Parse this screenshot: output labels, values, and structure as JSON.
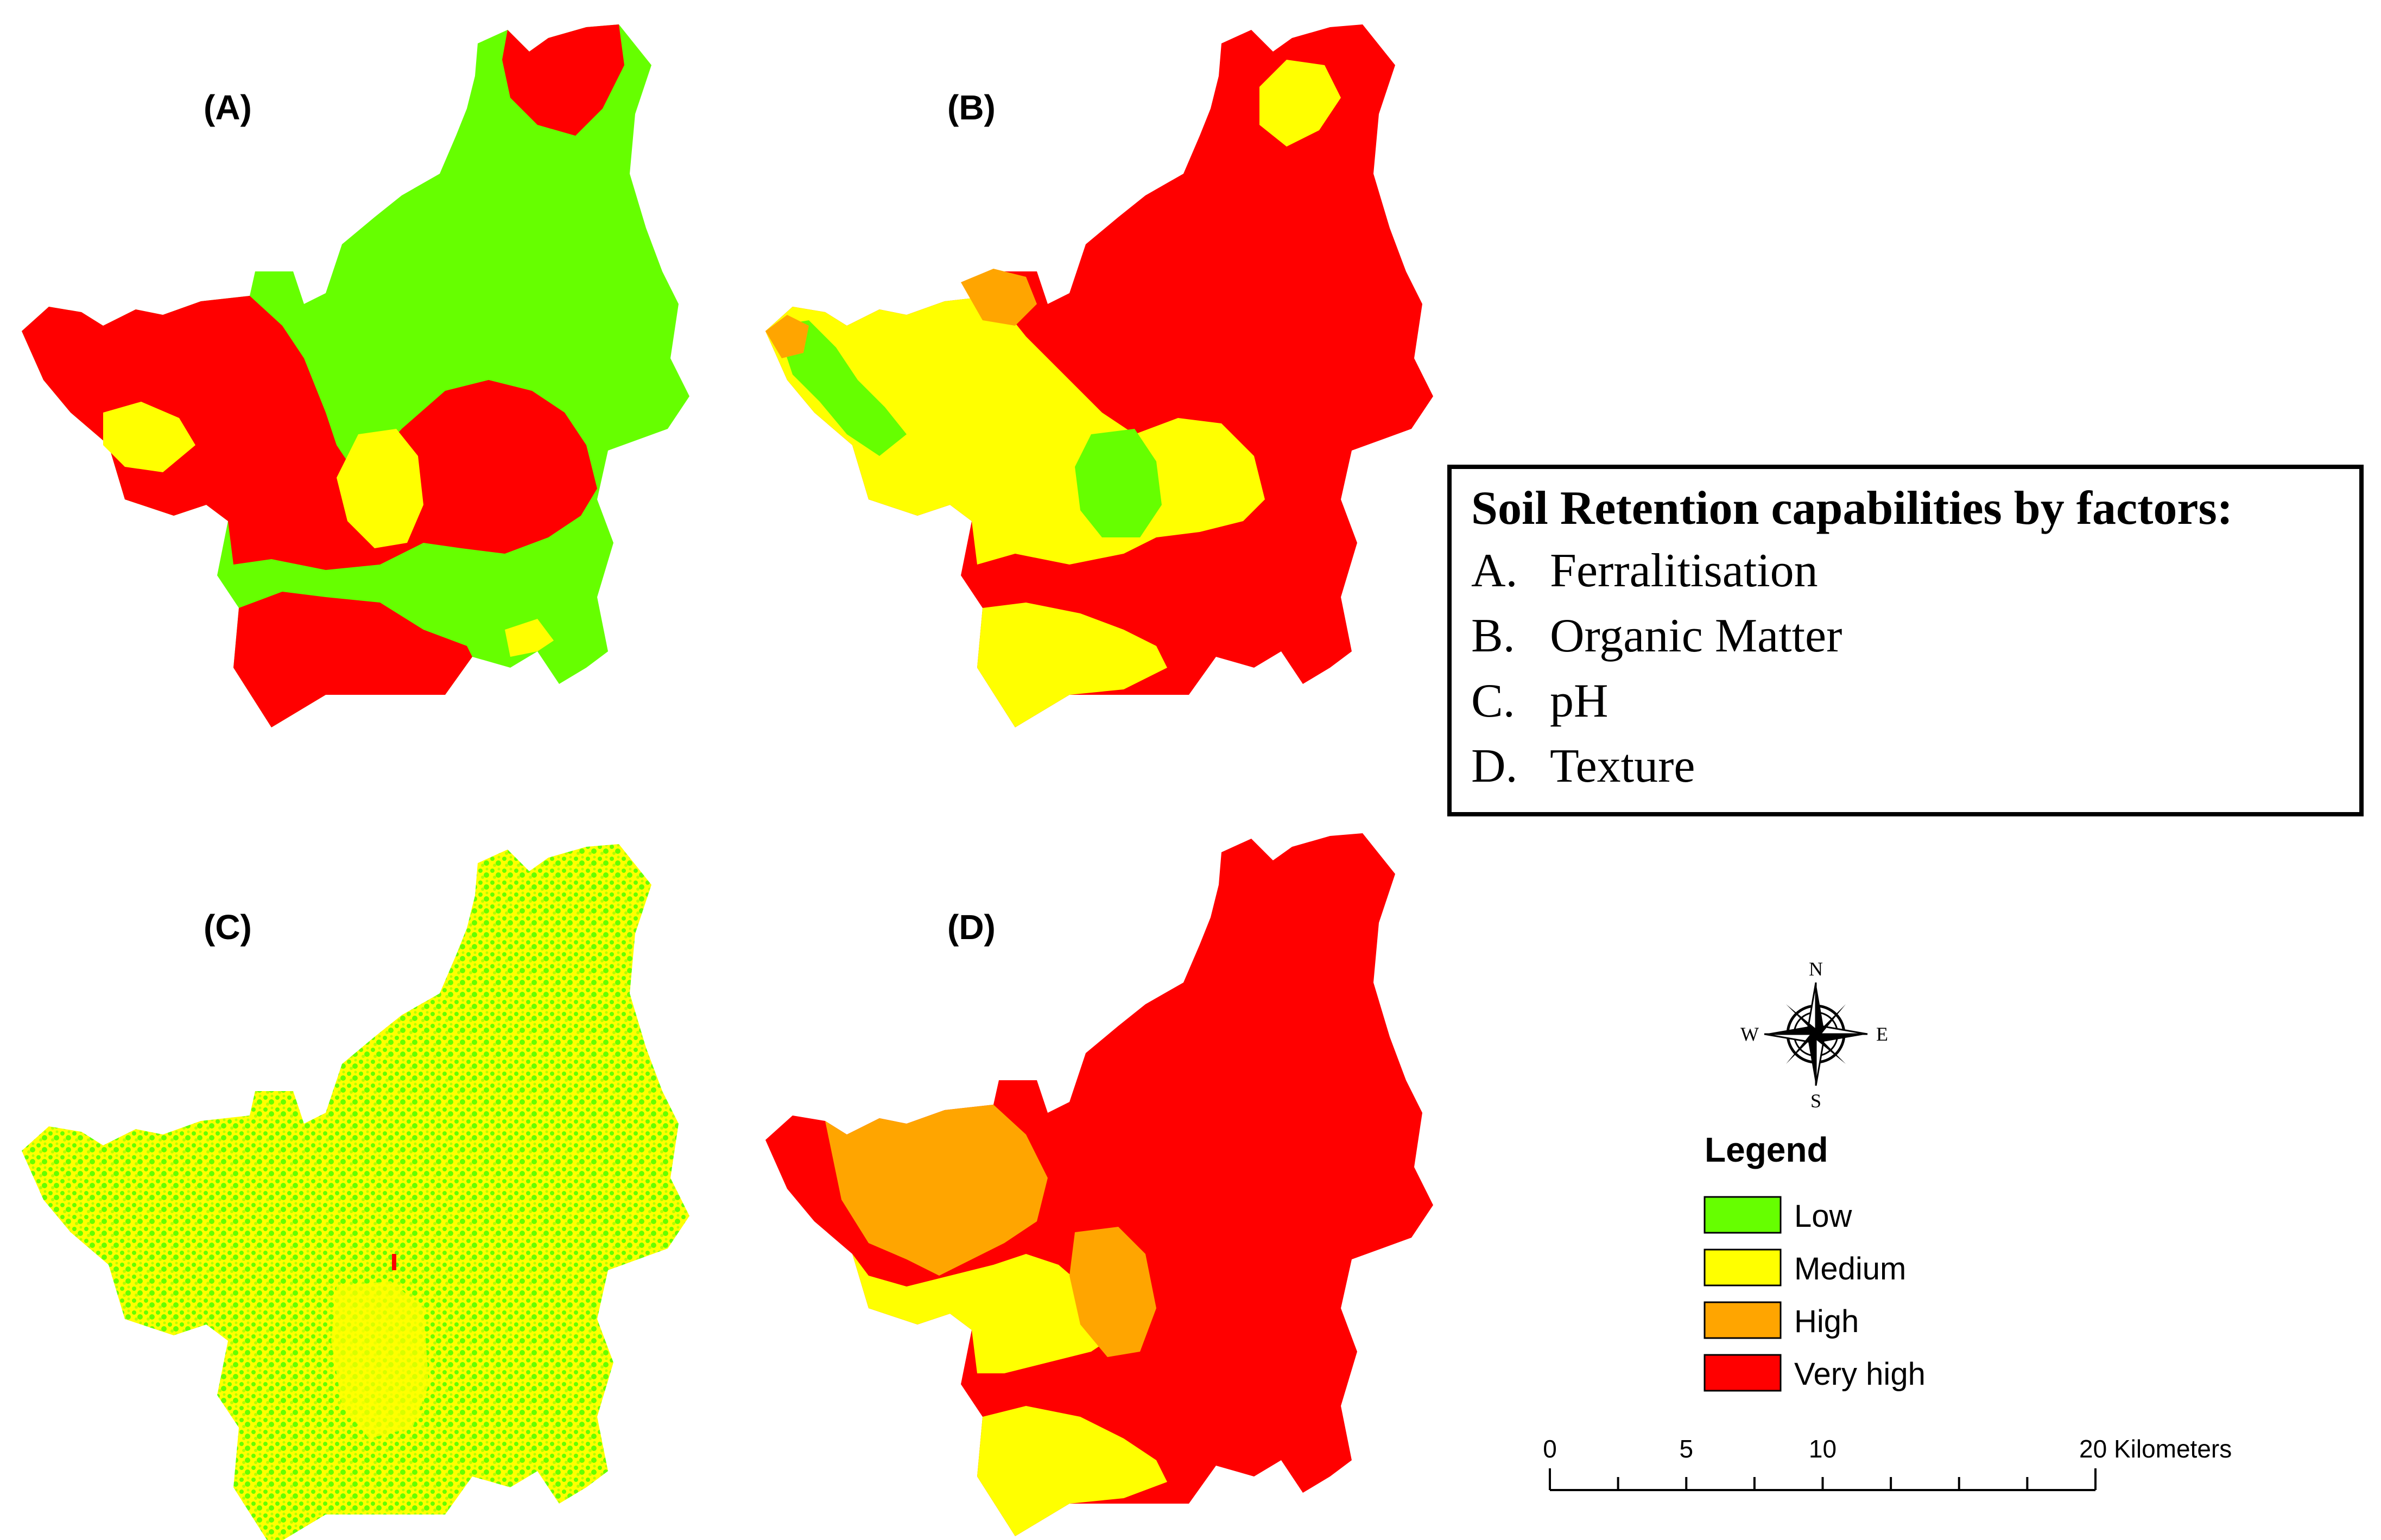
{
  "panels": [
    {
      "label": "(A)",
      "factor": "Ferralitisation",
      "base_class": "Low",
      "palette": [
        "Very high",
        "Medium"
      ]
    },
    {
      "label": "(B)",
      "factor": "Organic Matter",
      "base_class": "Very high",
      "palette": [
        "Medium",
        "Low",
        "High"
      ]
    },
    {
      "label": "(C)",
      "factor": "pH",
      "base_class": "Medium",
      "palette": [
        "Low",
        "Very high"
      ]
    },
    {
      "label": "(D)",
      "factor": "Texture",
      "base_class": "Very high",
      "palette": [
        "High",
        "Medium"
      ]
    }
  ],
  "info_box": {
    "title": "Soil Retention capabilities by factors:",
    "items": [
      {
        "letter": "A.",
        "text": "Ferralitisation"
      },
      {
        "letter": "B.",
        "text": "Organic Matter"
      },
      {
        "letter": "C.",
        "text": "pH"
      },
      {
        "letter": "D.",
        "text": "Texture"
      }
    ]
  },
  "compass": {
    "n": "N",
    "s": "S",
    "e": "E",
    "w": "W",
    "icon": "compass-rose-icon"
  },
  "legend": {
    "title": "Legend",
    "classes": [
      {
        "name": "Low",
        "color": "#66ff00"
      },
      {
        "name": "Medium",
        "color": "#ffff00"
      },
      {
        "name": "High",
        "color": "#ffa500"
      },
      {
        "name": "Very high",
        "color": "#ff0000"
      }
    ]
  },
  "scale_bar": {
    "labels": [
      "0",
      "5",
      "10",
      "20 Kilometers"
    ],
    "values": [
      0,
      5,
      10,
      20
    ],
    "max": 20
  }
}
